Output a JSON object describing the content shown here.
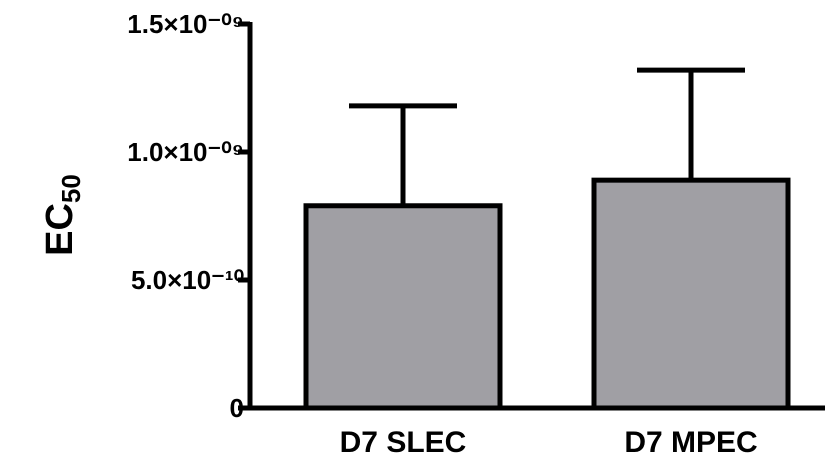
{
  "chart_data": {
    "type": "bar",
    "title": "",
    "xlabel": "",
    "ylabel": "EC",
    "ylabel_subscript": "50",
    "categories": [
      "D7 SLEC",
      "D7 MPEC"
    ],
    "values": [
      7.9e-10,
      8.9e-10
    ],
    "error_upper": [
      1.18e-09,
      1.32e-09
    ],
    "ylim": [
      0,
      1.5e-09
    ],
    "yticks": [
      {
        "value": 0,
        "label": "0"
      },
      {
        "value": 5e-10,
        "label": "5.0×10⁻¹⁰"
      },
      {
        "value": 1e-09,
        "label": "1.0×10⁻⁰⁹"
      },
      {
        "value": 1.5e-09,
        "label": "1.5×10⁻⁰⁹"
      }
    ],
    "grid": false,
    "bar_color": "#a09fa4",
    "edge_color": "#000000"
  }
}
